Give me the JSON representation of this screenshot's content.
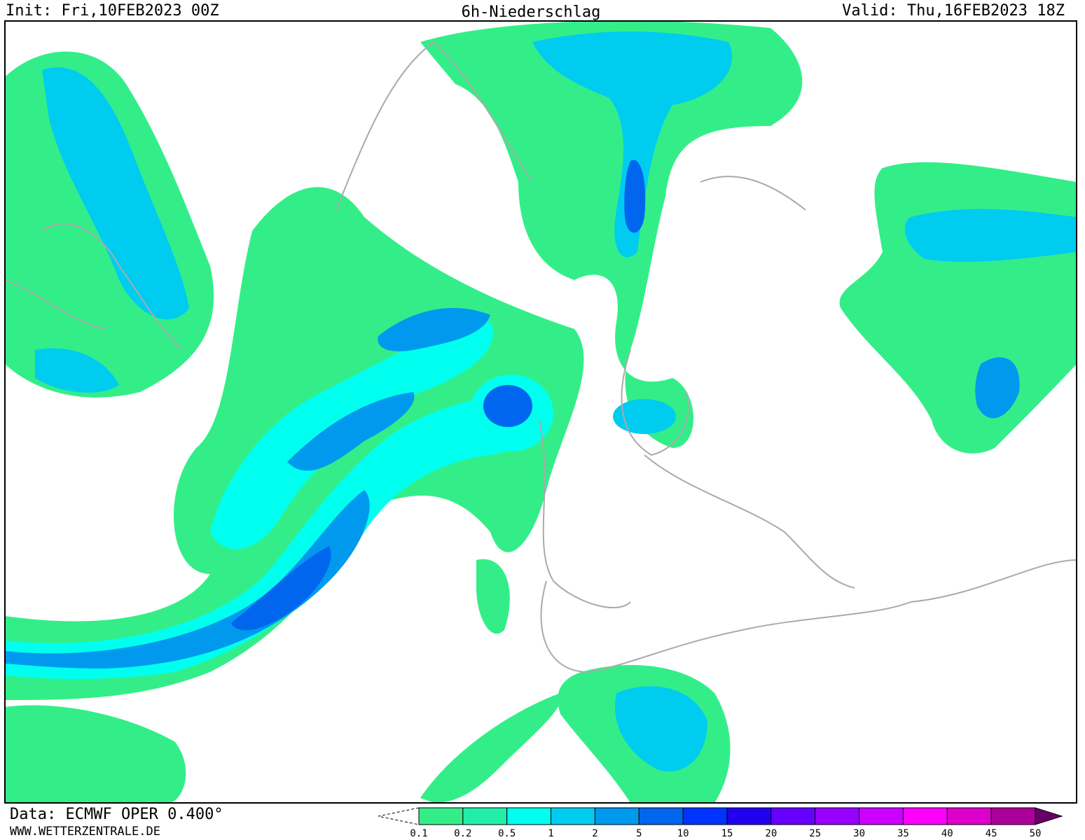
{
  "header": {
    "init": "Init: Fri,10FEB2023 00Z",
    "title": "6h-Niederschlag",
    "valid": "Valid: Thu,16FEB2023 18Z"
  },
  "footer": {
    "source": "Data: ECMWF OPER 0.400°",
    "website": "WWW.WETTERZENTRALE.DE"
  },
  "legend": {
    "levels": [
      0.1,
      0.2,
      0.5,
      1,
      2,
      5,
      10,
      15,
      20,
      25,
      30,
      35,
      40,
      45,
      50
    ],
    "colors": [
      "#33ee88",
      "#22eeaa",
      "#00ffee",
      "#00ccf0",
      "#0099ee",
      "#0066ee",
      "#0033ff",
      "#2200ee",
      "#6600ff",
      "#9900ff",
      "#cc00ff",
      "#ff00ff",
      "#dd00cc",
      "#aa0099",
      "#660066"
    ]
  }
}
